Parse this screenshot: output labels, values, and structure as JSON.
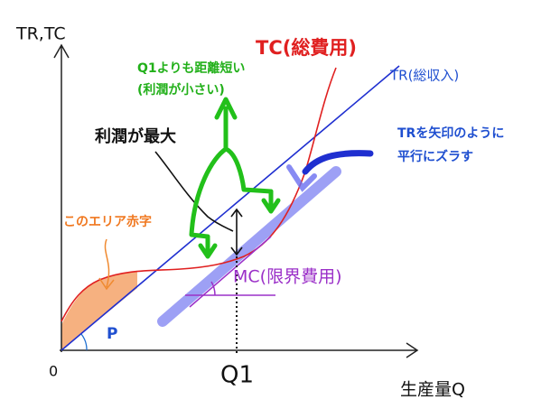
{
  "axes": {
    "y_label": "TR,TC",
    "x_label": "生産量Q",
    "origin": "0",
    "q1": "Q1"
  },
  "curves": {
    "tc": "TC(総費用)",
    "tr": "TR(総収入)",
    "mc": "MC(限界費用)",
    "p": "P"
  },
  "notes": {
    "shorter_line1": "Q1よりも距離短い",
    "shorter_line2": "(利潤が小さい)",
    "max_profit": "利潤が最大",
    "shift_line1": "TRを矢印のように",
    "shift_line2": "平行にズラす",
    "deficit": "このエリア赤字"
  }
}
